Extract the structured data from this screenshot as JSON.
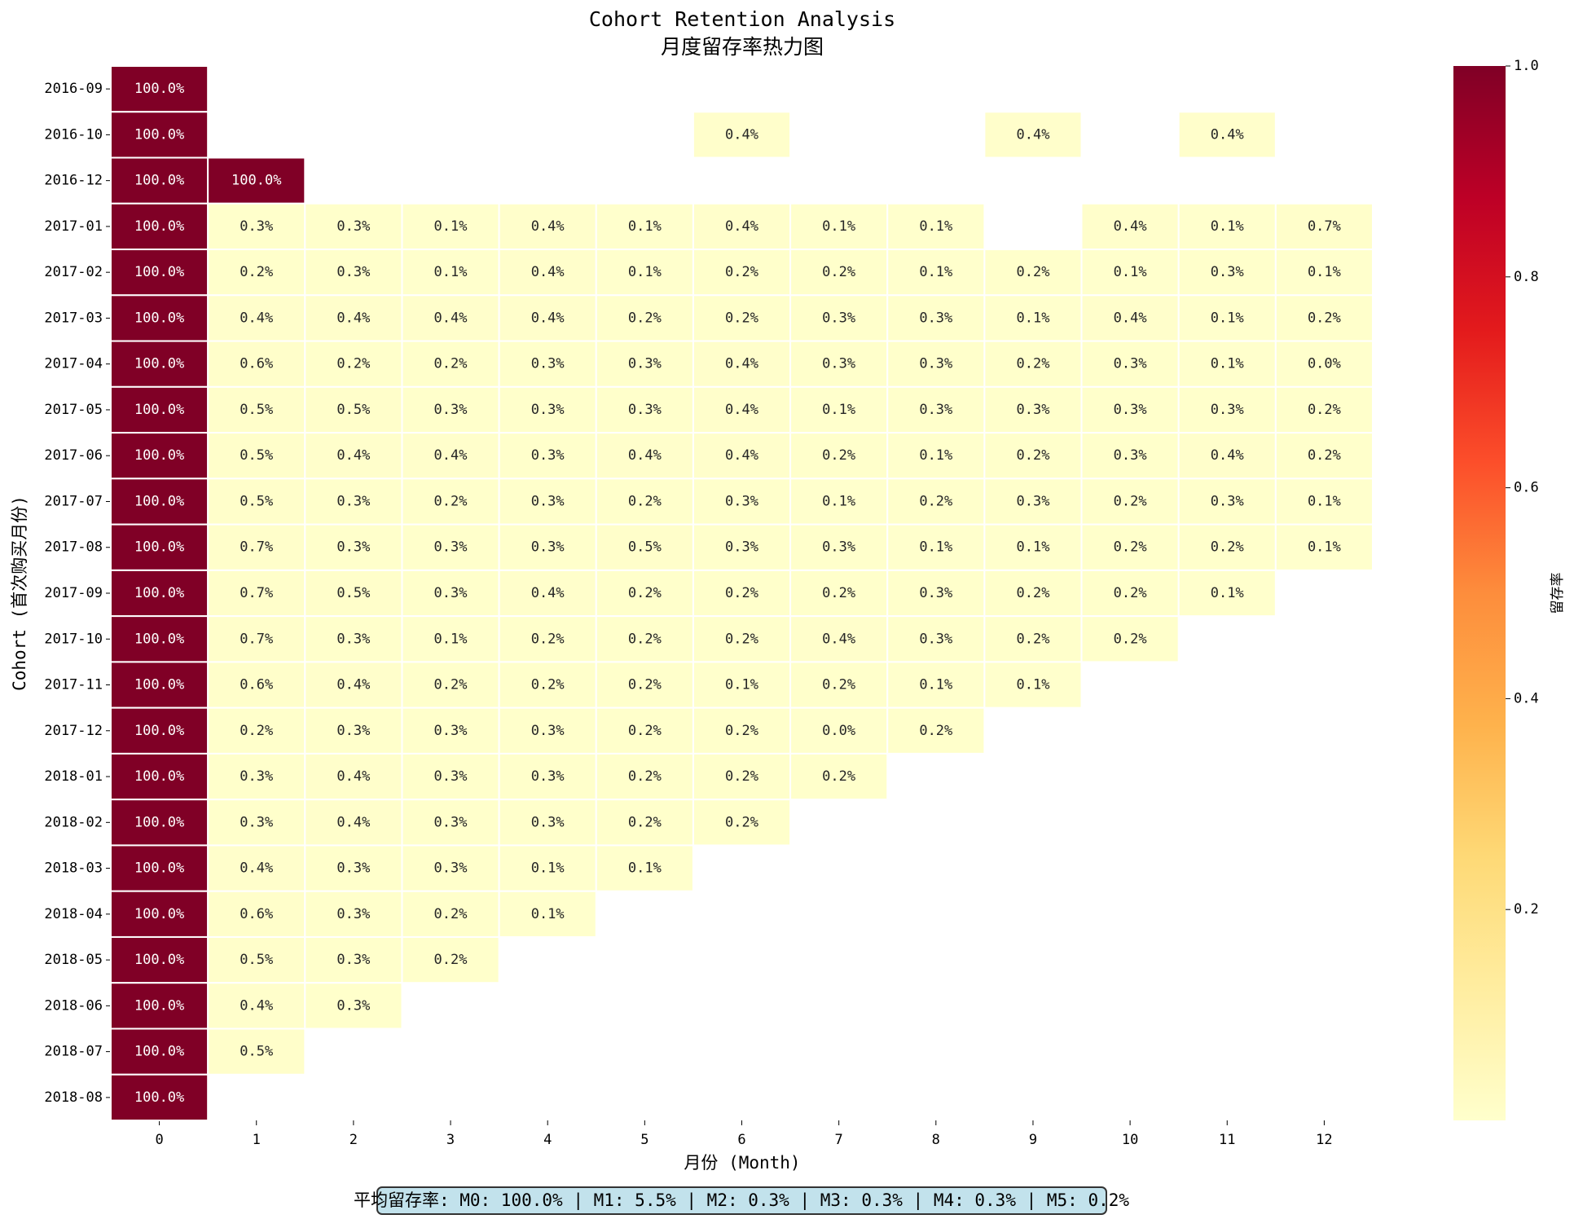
{
  "chart_data": {
    "type": "heatmap",
    "title": "Cohort Retention Analysis",
    "subtitle": "月度留存率热力图",
    "x_label": "月份 (Month)",
    "y_label": "Cohort (首次购买月份)",
    "colorbar_label": "留存率",
    "colormap": "YlOrRd",
    "clim": [
      0,
      1
    ],
    "cticks": [
      0.2,
      0.4,
      0.6,
      0.8,
      {
        "value": 1,
        "label": "1.0"
      }
    ],
    "annotation": "平均留存率: M0: 100.0% | M1: 5.5% | M2: 0.3% | M3: 0.3% | M4: 0.3% | M5: 0.2%",
    "x": [
      0,
      1,
      2,
      3,
      4,
      5,
      6,
      7,
      8,
      9,
      10,
      11,
      12
    ],
    "categories": [
      "2016-09",
      "2016-10",
      "2016-12",
      "2017-01",
      "2017-02",
      "2017-03",
      "2017-04",
      "2017-05",
      "2017-06",
      "2017-07",
      "2017-08",
      "2017-09",
      "2017-10",
      "2017-11",
      "2017-12",
      "2018-01",
      "2018-02",
      "2018-03",
      "2018-04",
      "2018-05",
      "2018-06",
      "2018-07",
      "2018-08"
    ],
    "values": [
      [
        1,
        null,
        null,
        null,
        null,
        null,
        null,
        null,
        null,
        null,
        null,
        null,
        null
      ],
      [
        1,
        null,
        null,
        null,
        null,
        null,
        0.004,
        null,
        null,
        0.004,
        null,
        0.004,
        null
      ],
      [
        1,
        1,
        null,
        null,
        null,
        null,
        null,
        null,
        null,
        null,
        null,
        null,
        null
      ],
      [
        1,
        0.003,
        0.003,
        0.001,
        0.004,
        0.001,
        0.004,
        0.001,
        0.001,
        null,
        0.004,
        0.001,
        0.007
      ],
      [
        1,
        0.002,
        0.003,
        0.001,
        0.004,
        0.001,
        0.002,
        0.002,
        0.001,
        0.002,
        0.001,
        0.003,
        0.001
      ],
      [
        1,
        0.004,
        0.004,
        0.004,
        0.004,
        0.002,
        0.002,
        0.003,
        0.003,
        0.001,
        0.004,
        0.001,
        0.002
      ],
      [
        1,
        0.006,
        0.002,
        0.002,
        0.003,
        0.003,
        0.004,
        0.003,
        0.003,
        0.002,
        0.003,
        0.001,
        0
      ],
      [
        1,
        0.005,
        0.005,
        0.003,
        0.003,
        0.003,
        0.004,
        0.001,
        0.003,
        0.003,
        0.003,
        0.003,
        0.002
      ],
      [
        1,
        0.005,
        0.004,
        0.004,
        0.003,
        0.004,
        0.004,
        0.002,
        0.001,
        0.002,
        0.003,
        0.004,
        0.002
      ],
      [
        1,
        0.005,
        0.003,
        0.002,
        0.003,
        0.002,
        0.003,
        0.001,
        0.002,
        0.003,
        0.002,
        0.003,
        0.001
      ],
      [
        1,
        0.007,
        0.003,
        0.003,
        0.003,
        0.005,
        0.003,
        0.003,
        0.001,
        0.001,
        0.002,
        0.002,
        0.001
      ],
      [
        1,
        0.007,
        0.005,
        0.003,
        0.004,
        0.002,
        0.002,
        0.002,
        0.003,
        0.002,
        0.002,
        0.001,
        null
      ],
      [
        1,
        0.007,
        0.003,
        0.001,
        0.002,
        0.002,
        0.002,
        0.004,
        0.003,
        0.002,
        0.002,
        null,
        null
      ],
      [
        1,
        0.006,
        0.004,
        0.002,
        0.002,
        0.002,
        0.001,
        0.002,
        0.001,
        0.001,
        null,
        null,
        null
      ],
      [
        1,
        0.002,
        0.003,
        0.003,
        0.003,
        0.002,
        0.002,
        0,
        0.002,
        null,
        null,
        null,
        null
      ],
      [
        1,
        0.003,
        0.004,
        0.003,
        0.003,
        0.002,
        0.002,
        0.002,
        null,
        null,
        null,
        null,
        null
      ],
      [
        1,
        0.003,
        0.004,
        0.003,
        0.003,
        0.002,
        0.002,
        null,
        null,
        null,
        null,
        null,
        null
      ],
      [
        1,
        0.004,
        0.003,
        0.003,
        0.001,
        0.001,
        null,
        null,
        null,
        null,
        null,
        null,
        null
      ],
      [
        1,
        0.006,
        0.003,
        0.002,
        0.001,
        null,
        null,
        null,
        null,
        null,
        null,
        null,
        null
      ],
      [
        1,
        0.005,
        0.003,
        0.002,
        null,
        null,
        null,
        null,
        null,
        null,
        null,
        null,
        null
      ],
      [
        1,
        0.004,
        0.003,
        null,
        null,
        null,
        null,
        null,
        null,
        null,
        null,
        null,
        null
      ],
      [
        1,
        0.005,
        null,
        null,
        null,
        null,
        null,
        null,
        null,
        null,
        null,
        null,
        null
      ],
      [
        1,
        null,
        null,
        null,
        null,
        null,
        null,
        null,
        null,
        null,
        null,
        null,
        null
      ]
    ],
    "value_labels": [
      [
        "100.0%",
        null,
        null,
        null,
        null,
        null,
        null,
        null,
        null,
        null,
        null,
        null,
        null
      ],
      [
        "100.0%",
        null,
        null,
        null,
        null,
        null,
        "0.4%",
        null,
        null,
        "0.4%",
        null,
        "0.4%",
        null
      ],
      [
        "100.0%",
        "100.0%",
        null,
        null,
        null,
        null,
        null,
        null,
        null,
        null,
        null,
        null,
        null
      ],
      [
        "100.0%",
        "0.3%",
        "0.3%",
        "0.1%",
        "0.4%",
        "0.1%",
        "0.4%",
        "0.1%",
        "0.1%",
        null,
        "0.4%",
        "0.1%",
        "0.7%"
      ],
      [
        "100.0%",
        "0.2%",
        "0.3%",
        "0.1%",
        "0.4%",
        "0.1%",
        "0.2%",
        "0.2%",
        "0.1%",
        "0.2%",
        "0.1%",
        "0.3%",
        "0.1%"
      ],
      [
        "100.0%",
        "0.4%",
        "0.4%",
        "0.4%",
        "0.4%",
        "0.2%",
        "0.2%",
        "0.3%",
        "0.3%",
        "0.1%",
        "0.4%",
        "0.1%",
        "0.2%"
      ],
      [
        "100.0%",
        "0.6%",
        "0.2%",
        "0.2%",
        "0.3%",
        "0.3%",
        "0.4%",
        "0.3%",
        "0.3%",
        "0.2%",
        "0.3%",
        "0.1%",
        "0.0%"
      ],
      [
        "100.0%",
        "0.5%",
        "0.5%",
        "0.3%",
        "0.3%",
        "0.3%",
        "0.4%",
        "0.1%",
        "0.3%",
        "0.3%",
        "0.3%",
        "0.3%",
        "0.2%"
      ],
      [
        "100.0%",
        "0.5%",
        "0.4%",
        "0.4%",
        "0.3%",
        "0.4%",
        "0.4%",
        "0.2%",
        "0.1%",
        "0.2%",
        "0.3%",
        "0.4%",
        "0.2%"
      ],
      [
        "100.0%",
        "0.5%",
        "0.3%",
        "0.2%",
        "0.3%",
        "0.2%",
        "0.3%",
        "0.1%",
        "0.2%",
        "0.3%",
        "0.2%",
        "0.3%",
        "0.1%"
      ],
      [
        "100.0%",
        "0.7%",
        "0.3%",
        "0.3%",
        "0.3%",
        "0.5%",
        "0.3%",
        "0.3%",
        "0.1%",
        "0.1%",
        "0.2%",
        "0.2%",
        "0.1%"
      ],
      [
        "100.0%",
        "0.7%",
        "0.5%",
        "0.3%",
        "0.4%",
        "0.2%",
        "0.2%",
        "0.2%",
        "0.3%",
        "0.2%",
        "0.2%",
        "0.1%",
        null
      ],
      [
        "100.0%",
        "0.7%",
        "0.3%",
        "0.1%",
        "0.2%",
        "0.2%",
        "0.2%",
        "0.4%",
        "0.3%",
        "0.2%",
        "0.2%",
        null,
        null
      ],
      [
        "100.0%",
        "0.6%",
        "0.4%",
        "0.2%",
        "0.2%",
        "0.2%",
        "0.1%",
        "0.2%",
        "0.1%",
        "0.1%",
        null,
        null,
        null
      ],
      [
        "100.0%",
        "0.2%",
        "0.3%",
        "0.3%",
        "0.3%",
        "0.2%",
        "0.2%",
        "0.0%",
        "0.2%",
        null,
        null,
        null,
        null
      ],
      [
        "100.0%",
        "0.3%",
        "0.4%",
        "0.3%",
        "0.3%",
        "0.2%",
        "0.2%",
        "0.2%",
        null,
        null,
        null,
        null,
        null
      ],
      [
        "100.0%",
        "0.3%",
        "0.4%",
        "0.3%",
        "0.3%",
        "0.2%",
        "0.2%",
        null,
        null,
        null,
        null,
        null,
        null
      ],
      [
        "100.0%",
        "0.4%",
        "0.3%",
        "0.3%",
        "0.1%",
        "0.1%",
        null,
        null,
        null,
        null,
        null,
        null,
        null
      ],
      [
        "100.0%",
        "0.6%",
        "0.3%",
        "0.2%",
        "0.1%",
        null,
        null,
        null,
        null,
        null,
        null,
        null,
        null
      ],
      [
        "100.0%",
        "0.5%",
        "0.3%",
        "0.2%",
        null,
        null,
        null,
        null,
        null,
        null,
        null,
        null,
        null
      ],
      [
        "100.0%",
        "0.4%",
        "0.3%",
        null,
        null,
        null,
        null,
        null,
        null,
        null,
        null,
        null,
        null
      ],
      [
        "100.0%",
        "0.5%",
        null,
        null,
        null,
        null,
        null,
        null,
        null,
        null,
        null,
        null,
        null
      ],
      [
        "100.0%",
        null,
        null,
        null,
        null,
        null,
        null,
        null,
        null,
        null,
        null,
        null,
        null
      ]
    ]
  }
}
